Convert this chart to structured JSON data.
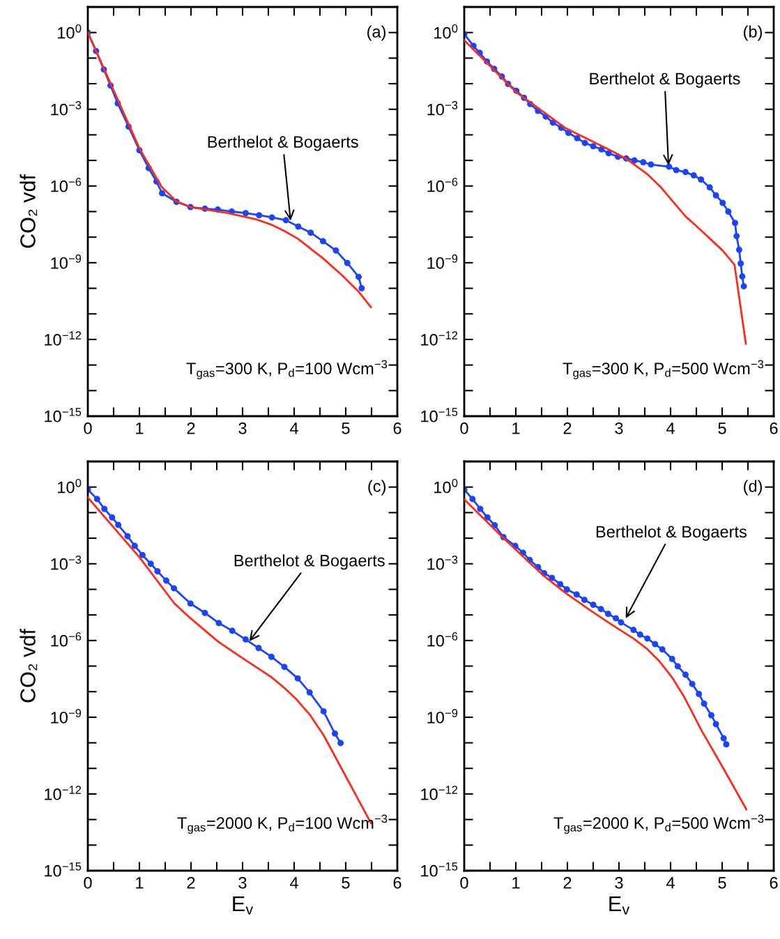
{
  "chart_data": [
    {
      "type": "line",
      "log": "y",
      "ylabel": "CO₂ vdf",
      "xlim": [
        0,
        6
      ],
      "ylim": [
        1e-15,
        10
      ],
      "xticks": [
        0,
        {
          "value": 0.5,
          "label": null
        },
        1,
        {
          "value": 1.5,
          "label": null
        },
        2,
        {
          "value": 2.5,
          "label": null
        },
        3,
        {
          "value": 3.5,
          "label": null
        },
        4,
        {
          "value": 4.5,
          "label": null
        },
        5,
        {
          "value": 5.5,
          "label": null
        },
        6
      ],
      "yticks": [
        {
          "value": 1e-15,
          "label": "10$^{−15}$"
        },
        {
          "value": 1e-14,
          "label": null
        },
        {
          "value": 1e-13,
          "label": null
        },
        {
          "value": 1e-12,
          "label": "10$^{−12}$"
        },
        {
          "value": 1e-11,
          "label": null
        },
        {
          "value": 1e-10,
          "label": null
        },
        {
          "value": 1e-09,
          "label": "10$^{−9}$"
        },
        {
          "value": 1e-08,
          "label": null
        },
        {
          "value": 1e-07,
          "label": null
        },
        {
          "value": 1e-06,
          "label": "10$^{−6}$"
        },
        {
          "value": 1e-05,
          "label": null
        },
        {
          "value": 0.0001,
          "label": null
        },
        {
          "value": 0.001,
          "label": "10$^{−3}$"
        },
        {
          "value": 0.01,
          "label": null
        },
        {
          "value": 0.1,
          "label": null
        },
        {
          "value": 1,
          "label": "10$^{0}$"
        },
        {
          "value": 10,
          "label": null
        }
      ],
      "annotations": [
        {
          "text": "Berthelot & Bogaerts",
          "x": 3.93,
          "y": 4.4e-08
        },
        "(a)",
        "T$_{gas}$=300 K, P$_{d}$=100 Wcm$^{−3}$"
      ],
      "series": [
        {
          "color": "#ff2a1a",
          "marker": "none",
          "x": [
            0,
            1,
            1.43,
            1.72,
            1.99,
            2.71,
            3.26,
            3.57,
            3.82,
            4.07,
            4.54,
            4.93,
            5.25,
            5.49
          ],
          "values": [
            1,
            3e-05,
            9.3e-07,
            2.5e-07,
            1.5e-07,
            8.7e-08,
            5e-08,
            3e-08,
            1.7e-08,
            8.7e-09,
            1.6e-09,
            3.2e-10,
            7.4e-11,
            1.8e-11
          ]
        },
        {
          "color": "#1a44ff",
          "marker": "circle",
          "x": [
            0,
            0.16,
            0.31,
            0.44,
            0.58,
            0.79,
            1.0,
            1.18,
            1.33,
            1.44,
            1.72,
            1.99,
            2.27,
            2.52,
            2.79,
            3.06,
            3.32,
            3.57,
            3.84,
            4.08,
            4.32,
            4.56,
            4.81,
            5.03,
            5.25,
            5.31
          ],
          "values": [
            1,
            0.19,
            0.036,
            0.0085,
            0.0017,
            0.00021,
            2.5e-05,
            5e-06,
            1.5e-06,
            5.2e-07,
            2.4e-07,
            1.5e-07,
            1.3e-07,
            1.2e-07,
            1e-07,
            8.7e-08,
            7.2e-08,
            5.9e-08,
            4.6e-08,
            2.6e-08,
            1.5e-08,
            6.9e-09,
            3e-09,
            9.8e-10,
            2.8e-10,
            1e-10
          ]
        }
      ]
    },
    {
      "type": "line",
      "log": "y",
      "xlim": [
        0,
        6
      ],
      "ylim": [
        1e-15,
        10
      ],
      "xticks": [
        0,
        {
          "value": 0.5,
          "label": null
        },
        1,
        {
          "value": 1.5,
          "label": null
        },
        2,
        {
          "value": 2.5,
          "label": null
        },
        3,
        {
          "value": 3.5,
          "label": null
        },
        4,
        {
          "value": 4.5,
          "label": null
        },
        5,
        {
          "value": 5.5,
          "label": null
        },
        6
      ],
      "yticks": [
        {
          "value": 1e-15,
          "label": "10$^{−15}$"
        },
        {
          "value": 1e-14,
          "label": null
        },
        {
          "value": 1e-13,
          "label": null
        },
        {
          "value": 1e-12,
          "label": "10$^{−12}$"
        },
        {
          "value": 1e-11,
          "label": null
        },
        {
          "value": 1e-10,
          "label": null
        },
        {
          "value": 1e-09,
          "label": "10$^{−9}$"
        },
        {
          "value": 1e-08,
          "label": null
        },
        {
          "value": 1e-07,
          "label": null
        },
        {
          "value": 1e-06,
          "label": "10$^{−6}$"
        },
        {
          "value": 1e-05,
          "label": null
        },
        {
          "value": 0.0001,
          "label": null
        },
        {
          "value": 0.001,
          "label": "10$^{−3}$"
        },
        {
          "value": 0.01,
          "label": null
        },
        {
          "value": 0.1,
          "label": null
        },
        {
          "value": 1,
          "label": "10$^{0}$"
        },
        {
          "value": 10,
          "label": null
        }
      ],
      "annotations": [
        {
          "text": "Berthelot & Bogaerts",
          "x": 3.96,
          "y": 6.5e-06
        },
        "(b)",
        "T$_{gas}$=300 K, P$_{d}$=500 Wcm$^{−3}$"
      ],
      "series": [
        {
          "color": "#ff2a1a",
          "marker": "none",
          "x": [
            0,
            1,
            1.97,
            2.77,
            3.13,
            3.55,
            3.8,
            4.29,
            4.54,
            5.01,
            5.24,
            5.46
          ],
          "values": [
            0.5,
            0.0048,
            0.00018,
            2.9e-05,
            1.2e-05,
            2.9e-06,
            9.5e-07,
            6.5e-08,
            2.3e-08,
            3e-09,
            8.3e-10,
            6.8e-13
          ]
        },
        {
          "color": "#1a44ff",
          "marker": "circle",
          "x": [
            0,
            0.18,
            0.3,
            0.44,
            0.58,
            0.73,
            0.85,
            1.01,
            1.16,
            1.28,
            1.43,
            1.58,
            1.72,
            1.88,
            2.02,
            2.19,
            2.34,
            2.5,
            2.66,
            2.8,
            2.98,
            3.14,
            3.3,
            3.47,
            3.62,
            3.97,
            4.11,
            4.29,
            4.45,
            4.59,
            4.76,
            4.88,
            5.01,
            5.12,
            5.25,
            5.28,
            5.33,
            5.36,
            5.39,
            5.42
          ],
          "values": [
            0.87,
            0.3,
            0.16,
            0.074,
            0.038,
            0.019,
            0.0098,
            0.0053,
            0.0028,
            0.0016,
            0.00087,
            0.00052,
            0.0003,
            0.00019,
            0.00012,
            7.4e-05,
            4.8e-05,
            3.6e-05,
            2.7e-05,
            1.9e-05,
            1.4e-05,
            1.2e-05,
            1e-05,
            8.5e-06,
            6.9e-06,
            5.7e-06,
            4.2e-06,
            3.5e-06,
            2.6e-06,
            1.8e-06,
            8.8e-07,
            4.3e-07,
            2.2e-07,
            1e-07,
            3.6e-08,
            1.1e-08,
            3.2e-09,
            9.3e-10,
            2.9e-10,
            1.2e-10
          ]
        }
      ]
    },
    {
      "type": "line",
      "log": "y",
      "xlabel": "E$_{v}$",
      "ylabel": "CO₂ vdf",
      "xlim": [
        0,
        6
      ],
      "ylim": [
        1e-15,
        10
      ],
      "xticks": [
        0,
        {
          "value": 0.5,
          "label": null
        },
        1,
        {
          "value": 1.5,
          "label": null
        },
        2,
        {
          "value": 2.5,
          "label": null
        },
        3,
        {
          "value": 3.5,
          "label": null
        },
        4,
        {
          "value": 4.5,
          "label": null
        },
        5,
        {
          "value": 5.5,
          "label": null
        },
        6
      ],
      "yticks": [
        {
          "value": 1e-15,
          "label": "10$^{−15}$"
        },
        {
          "value": 1e-14,
          "label": null
        },
        {
          "value": 1e-13,
          "label": null
        },
        {
          "value": 1e-12,
          "label": "10$^{−12}$"
        },
        {
          "value": 1e-11,
          "label": null
        },
        {
          "value": 1e-10,
          "label": null
        },
        {
          "value": 1e-09,
          "label": "10$^{−9}$"
        },
        {
          "value": 1e-08,
          "label": null
        },
        {
          "value": 1e-07,
          "label": null
        },
        {
          "value": 1e-06,
          "label": "10$^{−6}$"
        },
        {
          "value": 1e-05,
          "label": null
        },
        {
          "value": 0.0001,
          "label": null
        },
        {
          "value": 0.001,
          "label": "10$^{−3}$"
        },
        {
          "value": 0.01,
          "label": null
        },
        {
          "value": 0.1,
          "label": null
        },
        {
          "value": 1,
          "label": "10$^{0}$"
        },
        {
          "value": 10,
          "label": null
        }
      ],
      "annotations": [
        {
          "text": "Berthelot & Bogaerts",
          "x": 3.13,
          "y": 9.3e-07
        },
        "(c)",
        "T$_{gas}$=2000 K, P$_{d}$=100 Wcm$^{−3}$"
      ],
      "series": [
        {
          "color": "#ff2a1a",
          "marker": "none",
          "x": [
            0,
            1,
            1.68,
            1.99,
            2.53,
            3.04,
            3.55,
            3.81,
            4.05,
            4.31,
            4.57,
            5.49
          ],
          "values": [
            0.39,
            0.0018,
            2.8e-05,
            7.4e-06,
            8.9e-07,
            1.8e-07,
            3.8e-08,
            1.4e-08,
            4.9e-09,
            1.2e-09,
            2e-10,
            7.2e-14
          ]
        },
        {
          "color": "#1a44ff",
          "marker": "circle",
          "x": [
            0,
            0.18,
            0.32,
            0.47,
            0.59,
            0.77,
            0.91,
            1.06,
            1.22,
            1.35,
            1.52,
            1.67,
            1.99,
            2.27,
            2.54,
            2.8,
            3.06,
            3.31,
            3.56,
            3.81,
            4.07,
            4.3,
            4.57,
            4.79,
            4.9
          ],
          "values": [
            0.8,
            0.34,
            0.14,
            0.065,
            0.033,
            0.012,
            0.005,
            0.0022,
            0.001,
            0.00051,
            0.00022,
            0.00011,
            2.8e-05,
            1.2e-05,
            4.8e-06,
            2.4e-06,
            1.1e-06,
            5.1e-07,
            2.3e-07,
            9.3e-08,
            3.3e-08,
            9.3e-09,
            1.7e-09,
            2.3e-10,
            9.8e-11
          ]
        }
      ]
    },
    {
      "type": "line",
      "log": "y",
      "xlabel": "E$_{v}$",
      "xlim": [
        0,
        6
      ],
      "ylim": [
        1e-15,
        10
      ],
      "xticks": [
        0,
        {
          "value": 0.5,
          "label": null
        },
        1,
        {
          "value": 1.5,
          "label": null
        },
        2,
        {
          "value": 2.5,
          "label": null
        },
        3,
        {
          "value": 3.5,
          "label": null
        },
        4,
        {
          "value": 4.5,
          "label": null
        },
        5,
        {
          "value": 5.5,
          "label": null
        },
        6
      ],
      "yticks": [
        {
          "value": 1e-15,
          "label": "10$^{−15}$"
        },
        {
          "value": 1e-14,
          "label": null
        },
        {
          "value": 1e-13,
          "label": null
        },
        {
          "value": 1e-12,
          "label": "10$^{−12}$"
        },
        {
          "value": 1e-11,
          "label": null
        },
        {
          "value": 1e-10,
          "label": null
        },
        {
          "value": 1e-09,
          "label": "10$^{−9}$"
        },
        {
          "value": 1e-08,
          "label": null
        },
        {
          "value": 1e-07,
          "label": null
        },
        {
          "value": 1e-06,
          "label": "10$^{−6}$"
        },
        {
          "value": 1e-05,
          "label": null
        },
        {
          "value": 0.0001,
          "label": null
        },
        {
          "value": 0.001,
          "label": "10$^{−3}$"
        },
        {
          "value": 0.01,
          "label": null
        },
        {
          "value": 0.1,
          "label": null
        },
        {
          "value": 1,
          "label": "10$^{0}$"
        },
        {
          "value": 10,
          "label": null
        }
      ],
      "annotations": [
        {
          "text": "Berthelot & Bogaerts",
          "x": 3.13,
          "y": 7.4e-06
        },
        "(d)",
        "T$_{gas}$=2000 K, P$_{d}$=500 Wcm$^{−3}$"
      ],
      "series": [
        {
          "color": "#ff2a1a",
          "marker": "none",
          "x": [
            0,
            0.74,
            1.52,
            1.95,
            2.49,
            2.97,
            3.28,
            3.55,
            3.79,
            4.03,
            4.27,
            4.61,
            5.03,
            5.47
          ],
          "values": [
            0.33,
            0.011,
            0.00037,
            7.6e-05,
            1.3e-05,
            3e-06,
            1.2e-06,
            4.6e-07,
            1.5e-07,
            3.6e-08,
            5.9e-09,
            2.8e-10,
            9.5e-12,
            2.5e-13
          ]
        },
        {
          "color": "#1a44ff",
          "marker": "circle",
          "x": [
            0,
            0.16,
            0.31,
            0.45,
            0.59,
            0.76,
            0.99,
            1.14,
            1.27,
            1.43,
            1.55,
            1.7,
            1.86,
            1.99,
            2.18,
            2.33,
            2.5,
            2.65,
            2.79,
            2.94,
            3.04,
            3.28,
            3.41,
            3.55,
            3.7,
            3.84,
            4.03,
            4.14,
            4.29,
            4.42,
            4.55,
            4.65,
            4.79,
            4.88,
            5.03,
            5.08
          ],
          "values": [
            0.8,
            0.34,
            0.14,
            0.065,
            0.032,
            0.011,
            0.005,
            0.0027,
            0.0014,
            0.00074,
            0.00043,
            0.00028,
            0.00016,
            0.0001,
            6.3e-05,
            3.9e-05,
            2.5e-05,
            1.7e-05,
            1.1e-05,
            7.4e-06,
            5.1e-06,
            2.6e-06,
            1.7e-06,
            1.2e-06,
            7.2e-07,
            4.5e-07,
            1.9e-07,
            9.8e-08,
            4.6e-08,
            2e-08,
            8.1e-09,
            3.4e-09,
            1.2e-09,
            5.4e-10,
            1.5e-10,
            8.7e-11
          ]
        }
      ]
    }
  ]
}
